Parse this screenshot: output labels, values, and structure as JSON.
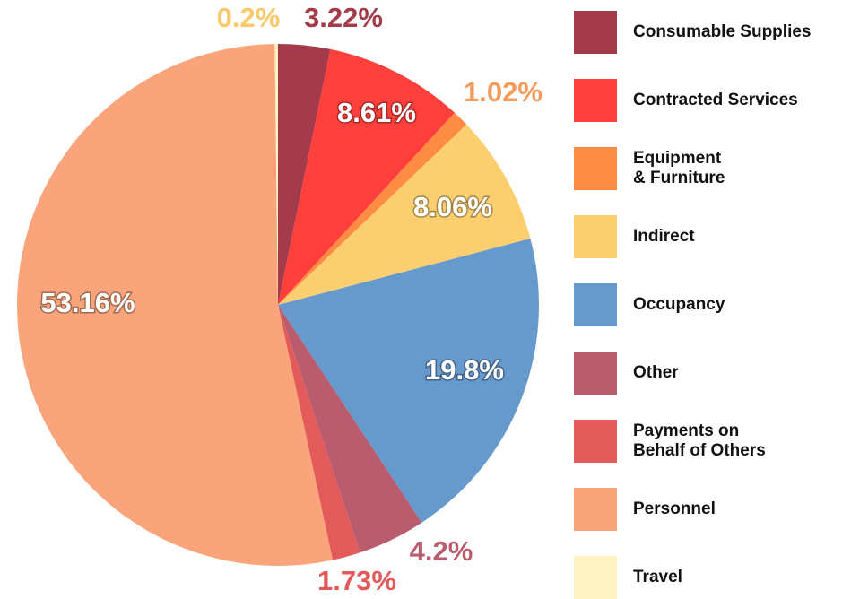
{
  "chart_data": {
    "type": "pie",
    "categories": [
      "Consumable Supplies",
      "Contracted Services",
      "Equipment\n& Furniture",
      "Indirect",
      "Occupancy",
      "Other",
      "Payments on\nBehalf of Others",
      "Personnel",
      "Travel"
    ],
    "values": [
      3.22,
      8.61,
      1.02,
      8.06,
      19.8,
      4.2,
      1.73,
      53.16,
      0.2
    ],
    "value_labels": [
      "3.22%",
      "8.61%",
      "1.02%",
      "8.06%",
      "19.8%",
      "4.2%",
      "1.73%",
      "53.16%",
      "0.2%"
    ],
    "colors": [
      "#a33b4a",
      "#ff3f3c",
      "#ff8c42",
      "#fbcf6f",
      "#6699cc",
      "#b85c6e",
      "#e35a5a",
      "#f9a47a",
      "#fff3c4"
    ],
    "legend": "right"
  }
}
